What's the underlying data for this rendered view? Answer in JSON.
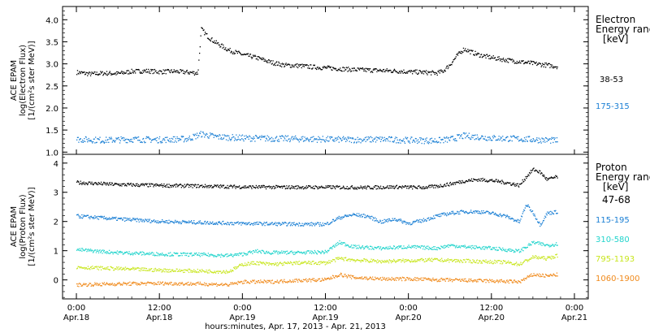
{
  "chart_data": [
    {
      "type": "scatter",
      "panel": "electron",
      "ylabel_lines": [
        "ACE EPAM",
        "log(Electron Flux)",
        "[1/(cm²s ster MeV)]"
      ],
      "yticks": [
        "1.0",
        "1.5",
        "2.0",
        "2.5",
        "3.0",
        "3.5",
        "4.0"
      ],
      "ylim": [
        0.95,
        4.3
      ],
      "legend_title_lines": [
        "Electron",
        "Energy ranges",
        "[keV]"
      ],
      "series": [
        {
          "name": "38-53",
          "color": "#000000",
          "points": [
            [
              0,
              2.82
            ],
            [
              2,
              2.78
            ],
            [
              4,
              2.8
            ],
            [
              6,
              2.79
            ],
            [
              8,
              2.84
            ],
            [
              10,
              2.85
            ],
            [
              12,
              2.83
            ],
            [
              14,
              2.84
            ],
            [
              16,
              2.82
            ],
            [
              17.5,
              2.8
            ],
            [
              18,
              3.8
            ],
            [
              19,
              3.62
            ],
            [
              20,
              3.5
            ],
            [
              22,
              3.32
            ],
            [
              24,
              3.22
            ],
            [
              26,
              3.15
            ],
            [
              28,
              3.05
            ],
            [
              30,
              2.98
            ],
            [
              32,
              2.97
            ],
            [
              34,
              2.94
            ],
            [
              36,
              2.92
            ],
            [
              38,
              2.9
            ],
            [
              40,
              2.88
            ],
            [
              42,
              2.87
            ],
            [
              44,
              2.86
            ],
            [
              46,
              2.85
            ],
            [
              48,
              2.83
            ],
            [
              50,
              2.82
            ],
            [
              52,
              2.8
            ],
            [
              53,
              2.85
            ],
            [
              54,
              3.0
            ],
            [
              55,
              3.2
            ],
            [
              56,
              3.35
            ],
            [
              57,
              3.28
            ],
            [
              58,
              3.22
            ],
            [
              60,
              3.15
            ],
            [
              62,
              3.1
            ],
            [
              64,
              3.06
            ],
            [
              66,
              3.02
            ],
            [
              68,
              2.98
            ],
            [
              69.5,
              2.95
            ]
          ]
        },
        {
          "name": "175-315",
          "color": "#1a7fd4",
          "points": [
            [
              0,
              1.3
            ],
            [
              4,
              1.28
            ],
            [
              8,
              1.3
            ],
            [
              12,
              1.29
            ],
            [
              16,
              1.31
            ],
            [
              18,
              1.42
            ],
            [
              20,
              1.36
            ],
            [
              24,
              1.33
            ],
            [
              28,
              1.32
            ],
            [
              32,
              1.31
            ],
            [
              36,
              1.3
            ],
            [
              40,
              1.29
            ],
            [
              44,
              1.3
            ],
            [
              48,
              1.28
            ],
            [
              52,
              1.27
            ],
            [
              54,
              1.3
            ],
            [
              56,
              1.38
            ],
            [
              60,
              1.33
            ],
            [
              64,
              1.31
            ],
            [
              68,
              1.28
            ],
            [
              69.5,
              1.27
            ]
          ]
        }
      ]
    },
    {
      "type": "scatter",
      "panel": "proton",
      "ylabel_lines": [
        "ACE EPAM",
        "log(Proton Flux)",
        "[1/(cm²s ster MeV)]"
      ],
      "yticks": [
        "0",
        "1",
        "2",
        "3",
        "4"
      ],
      "ylim": [
        -0.65,
        4.3
      ],
      "legend_title_lines": [
        "Proton",
        "Energy ranges",
        "[keV]"
      ],
      "series": [
        {
          "name": "47-68",
          "color": "#000000",
          "points": [
            [
              0,
              3.35
            ],
            [
              6,
              3.28
            ],
            [
              12,
              3.25
            ],
            [
              18,
              3.23
            ],
            [
              24,
              3.2
            ],
            [
              30,
              3.19
            ],
            [
              36,
              3.19
            ],
            [
              42,
              3.18
            ],
            [
              46,
              3.2
            ],
            [
              50,
              3.18
            ],
            [
              52,
              3.22
            ],
            [
              54,
              3.3
            ],
            [
              56,
              3.4
            ],
            [
              58,
              3.45
            ],
            [
              60,
              3.42
            ],
            [
              62,
              3.35
            ],
            [
              64,
              3.25
            ],
            [
              65,
              3.55
            ],
            [
              66,
              3.8
            ],
            [
              67,
              3.7
            ],
            [
              68,
              3.45
            ],
            [
              69.5,
              3.55
            ]
          ]
        },
        {
          "name": "115-195",
          "color": "#1a7fd4",
          "points": [
            [
              0,
              2.2
            ],
            [
              6,
              2.1
            ],
            [
              12,
              2.02
            ],
            [
              18,
              1.98
            ],
            [
              24,
              1.95
            ],
            [
              30,
              1.93
            ],
            [
              36,
              1.92
            ],
            [
              38,
              2.15
            ],
            [
              40,
              2.25
            ],
            [
              42,
              2.2
            ],
            [
              44,
              2.0
            ],
            [
              46,
              2.1
            ],
            [
              48,
              1.95
            ],
            [
              50,
              2.05
            ],
            [
              52,
              2.2
            ],
            [
              54,
              2.3
            ],
            [
              56,
              2.35
            ],
            [
              58,
              2.35
            ],
            [
              60,
              2.3
            ],
            [
              62,
              2.2
            ],
            [
              64,
              2.0
            ],
            [
              65,
              2.6
            ],
            [
              66,
              2.3
            ],
            [
              67,
              1.9
            ],
            [
              68,
              2.3
            ],
            [
              69.5,
              2.35
            ]
          ]
        },
        {
          "name": "310-580",
          "color": "#22d4cc",
          "points": [
            [
              0,
              1.05
            ],
            [
              6,
              0.95
            ],
            [
              12,
              0.9
            ],
            [
              18,
              0.88
            ],
            [
              22,
              0.85
            ],
            [
              24,
              0.9
            ],
            [
              26,
              1.0
            ],
            [
              28,
              0.95
            ],
            [
              32,
              0.95
            ],
            [
              36,
              0.97
            ],
            [
              38,
              1.3
            ],
            [
              40,
              1.15
            ],
            [
              44,
              1.1
            ],
            [
              48,
              1.15
            ],
            [
              52,
              1.1
            ],
            [
              54,
              1.2
            ],
            [
              56,
              1.15
            ],
            [
              60,
              1.1
            ],
            [
              64,
              1.0
            ],
            [
              66,
              1.3
            ],
            [
              68,
              1.2
            ],
            [
              69.5,
              1.25
            ]
          ]
        },
        {
          "name": "795-1193",
          "color": "#c8e61e",
          "points": [
            [
              0,
              0.45
            ],
            [
              6,
              0.4
            ],
            [
              12,
              0.35
            ],
            [
              18,
              0.32
            ],
            [
              22,
              0.3
            ],
            [
              24,
              0.55
            ],
            [
              26,
              0.6
            ],
            [
              28,
              0.55
            ],
            [
              32,
              0.6
            ],
            [
              36,
              0.6
            ],
            [
              38,
              0.75
            ],
            [
              40,
              0.7
            ],
            [
              44,
              0.65
            ],
            [
              48,
              0.68
            ],
            [
              52,
              0.7
            ],
            [
              54,
              0.68
            ],
            [
              58,
              0.65
            ],
            [
              62,
              0.62
            ],
            [
              64,
              0.55
            ],
            [
              66,
              0.8
            ],
            [
              68,
              0.75
            ],
            [
              69.5,
              0.85
            ]
          ]
        },
        {
          "name": "1060-1900",
          "color": "#f08a1c",
          "points": [
            [
              0,
              -0.15
            ],
            [
              6,
              -0.12
            ],
            [
              12,
              -0.1
            ],
            [
              18,
              -0.12
            ],
            [
              22,
              -0.15
            ],
            [
              24,
              -0.05
            ],
            [
              28,
              -0.05
            ],
            [
              32,
              0.0
            ],
            [
              36,
              0.02
            ],
            [
              38,
              0.2
            ],
            [
              40,
              0.1
            ],
            [
              44,
              0.05
            ],
            [
              48,
              0.05
            ],
            [
              52,
              0.02
            ],
            [
              56,
              0.0
            ],
            [
              60,
              -0.02
            ],
            [
              64,
              -0.05
            ],
            [
              66,
              0.2
            ],
            [
              68,
              0.15
            ],
            [
              69.5,
              0.2
            ]
          ]
        }
      ]
    }
  ],
  "x_axis": {
    "title": "hours:minutes, Apr. 17, 2013 - Apr. 21, 2013",
    "ticks": [
      {
        "hour": 0,
        "time": "0:00",
        "date": "Apr.18"
      },
      {
        "hour": 12,
        "time": "12:00",
        "date": "Apr.18"
      },
      {
        "hour": 24,
        "time": "0:00",
        "date": "Apr.19"
      },
      {
        "hour": 36,
        "time": "12:00",
        "date": "Apr.19"
      },
      {
        "hour": 48,
        "time": "0:00",
        "date": "Apr.20"
      },
      {
        "hour": 60,
        "time": "12:00",
        "date": "Apr.20"
      },
      {
        "hour": 72,
        "time": "0:00",
        "date": "Apr.21"
      }
    ],
    "range_hours": [
      -2,
      74
    ]
  }
}
